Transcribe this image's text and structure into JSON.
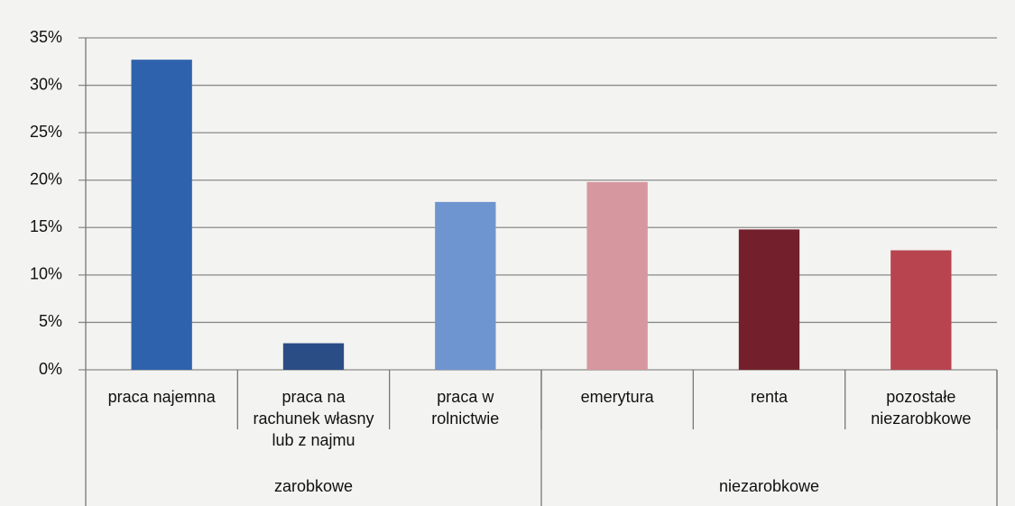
{
  "chart_data": {
    "type": "bar",
    "categories": [
      "praca najemna",
      "praca na rachunek własny lub z najmu",
      "praca w rolnictwie",
      "emerytura",
      "renta",
      "pozostałe niezarobkowe"
    ],
    "values": [
      32.7,
      2.8,
      17.7,
      19.8,
      14.8,
      12.6
    ],
    "colors": [
      "#2f62ad",
      "#2b4d86",
      "#6e95cf",
      "#d6979e",
      "#74202c",
      "#b7444f"
    ],
    "groups": [
      {
        "label": "zarobkowe",
        "size": 3
      },
      {
        "label": "niezarobkowe",
        "size": 3
      }
    ],
    "ylim": [
      0,
      35
    ],
    "yticks": [
      {
        "value": 0,
        "label": "0%"
      },
      {
        "value": 5,
        "label": "5%"
      },
      {
        "value": 10,
        "label": "10%"
      },
      {
        "value": 15,
        "label": "15%"
      },
      {
        "value": 20,
        "label": "20%"
      },
      {
        "value": 25,
        "label": "25%"
      },
      {
        "value": 30,
        "label": "30%"
      },
      {
        "value": 35,
        "label": "35%"
      }
    ],
    "grid": true
  }
}
